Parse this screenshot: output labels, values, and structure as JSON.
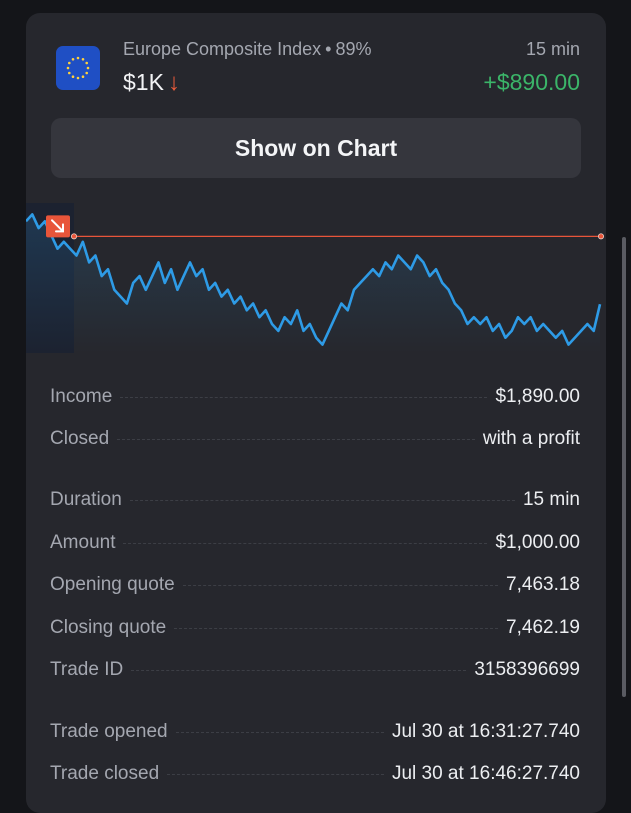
{
  "trade": {
    "asset_name": "Europe Composite Index",
    "payout": "89%",
    "amount": "$1K",
    "direction_icon": "arrow-down-icon",
    "duration": "15 min",
    "profit": "+$890.00",
    "show_chart_label": "Show on Chart"
  },
  "chart_data": {
    "type": "line",
    "title": "",
    "xlabel": "",
    "ylabel": "",
    "series": [
      {
        "values": [
          7463.4,
          7463.5,
          7463.3,
          7463.4,
          7463.2,
          7463.0,
          7463.1,
          7463.0,
          7462.9,
          7463.1,
          7462.8,
          7462.9,
          7462.6,
          7462.7,
          7462.4,
          7462.3,
          7462.2,
          7462.5,
          7462.6,
          7462.4,
          7462.6,
          7462.8,
          7462.5,
          7462.7,
          7462.4,
          7462.6,
          7462.8,
          7462.6,
          7462.7,
          7462.4,
          7462.5,
          7462.3,
          7462.4,
          7462.2,
          7462.3,
          7462.1,
          7462.2,
          7462.0,
          7462.1,
          7461.9,
          7461.8,
          7462.0,
          7461.9,
          7462.1,
          7461.8,
          7461.9,
          7461.7,
          7461.6,
          7461.8,
          7462.0,
          7462.2,
          7462.1,
          7462.4,
          7462.5,
          7462.6,
          7462.7,
          7462.6,
          7462.8,
          7462.7,
          7462.9,
          7462.8,
          7462.7,
          7462.9,
          7462.8,
          7462.6,
          7462.7,
          7462.5,
          7462.4,
          7462.2,
          7462.1,
          7461.9,
          7462.0,
          7461.9,
          7462.0,
          7461.8,
          7461.9,
          7461.7,
          7461.8,
          7462.0,
          7461.9,
          7462.0,
          7461.8,
          7461.9,
          7461.8,
          7461.7,
          7461.8,
          7461.6,
          7461.7,
          7461.8,
          7461.9,
          7461.8,
          7462.19
        ],
        "color": "#2e9be6"
      }
    ],
    "strike_price": 7463.18,
    "strike_color": "#e8553a"
  },
  "details": {
    "rows": [
      {
        "label": "Income",
        "value": "$1,890.00"
      },
      {
        "label": "Closed",
        "value": "with a profit"
      },
      {
        "label": "Duration",
        "value": "15 min"
      },
      {
        "label": "Amount",
        "value": "$1,000.00"
      },
      {
        "label": "Opening quote",
        "value": "7,463.18"
      },
      {
        "label": "Closing quote",
        "value": "7,462.19"
      },
      {
        "label": "Trade ID",
        "value": "3158396699"
      },
      {
        "label": "Trade opened",
        "value": "Jul 30 at 16:31:27.740"
      },
      {
        "label": "Trade closed",
        "value": "Jul 30 at 16:46:27.740"
      }
    ]
  },
  "colors": {
    "profit": "#3bb569",
    "loss_arrow": "#ea5b3a",
    "background": "#141519",
    "card": "#26272d"
  }
}
